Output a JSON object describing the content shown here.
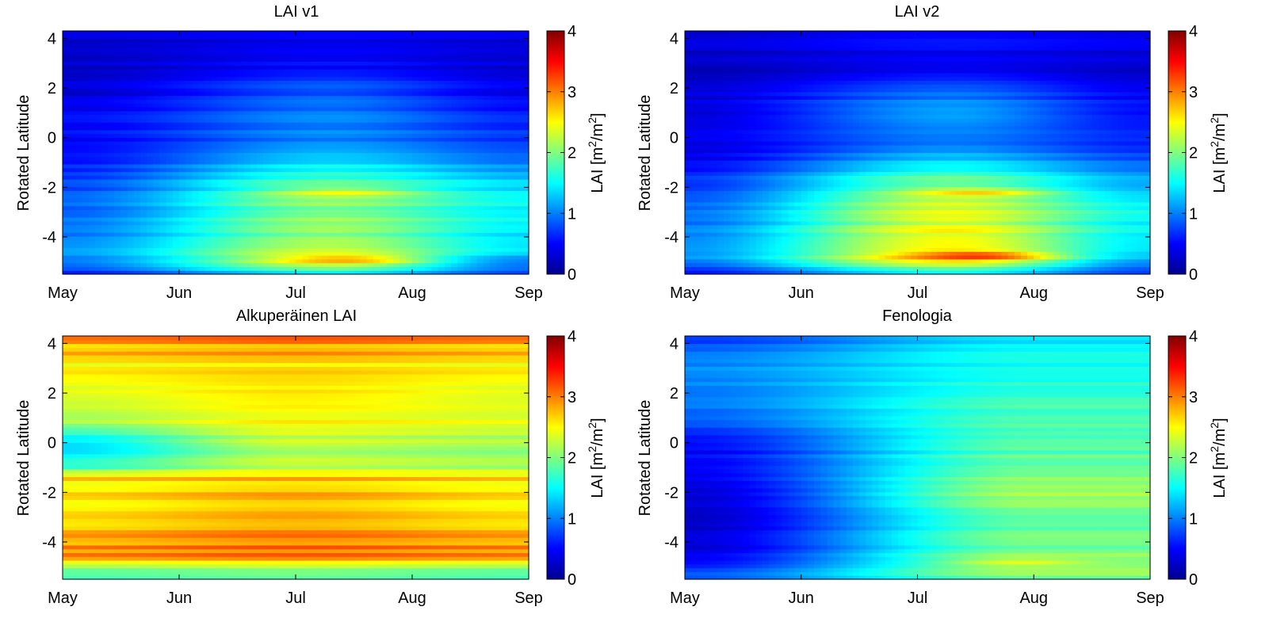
{
  "figure": {
    "colormap": "jet",
    "months": [
      "May",
      "Jun",
      "Jul",
      "Aug",
      "Sep"
    ]
  },
  "chart_data": [
    {
      "type": "heatmap",
      "title": "LAI v1",
      "xlabel": "",
      "ylabel": "Rotated Latitude",
      "xticks": [
        "May",
        "Jun",
        "Jul",
        "Aug",
        "Sep"
      ],
      "yticks": [
        4,
        2,
        0,
        -2,
        -4
      ],
      "ylim": [
        -5.5,
        4.3
      ],
      "colorbar": {
        "label_main": "LAI [m",
        "label_mid": "/m",
        "label_sup": "2",
        "clim": [
          0,
          4
        ],
        "ticks": [
          0,
          1,
          2,
          3,
          4
        ]
      },
      "pattern": {
        "lat_profile": [
          {
            "lat": -5.5,
            "early": 0.6,
            "peak": 1.4,
            "late": 0.8
          },
          {
            "lat": -5.0,
            "early": 1.0,
            "peak": 2.4,
            "late": 1.0
          },
          {
            "lat": -4.5,
            "early": 1.1,
            "peak": 2.2,
            "late": 1.4
          },
          {
            "lat": -3.0,
            "early": 0.9,
            "peak": 2.0,
            "late": 1.5
          },
          {
            "lat": -2.0,
            "early": 0.8,
            "peak": 1.9,
            "late": 1.4
          },
          {
            "lat": -1.0,
            "early": 0.6,
            "peak": 1.4,
            "late": 1.0
          },
          {
            "lat": 0.0,
            "early": 0.5,
            "peak": 1.0,
            "late": 0.7
          },
          {
            "lat": 1.0,
            "early": 0.5,
            "peak": 1.0,
            "late": 0.6
          },
          {
            "lat": 2.0,
            "early": 0.3,
            "peak": 0.8,
            "late": 0.4
          },
          {
            "lat": 3.0,
            "early": 0.3,
            "peak": 0.5,
            "late": 0.35
          },
          {
            "lat": 4.3,
            "early": 0.3,
            "peak": 0.4,
            "late": 0.35
          }
        ],
        "peak_month": 2.3,
        "hot_spots": [
          {
            "lat": -4.9,
            "month": 2.4,
            "value": 2.9
          },
          {
            "lat": -2.2,
            "month": 2.4,
            "value": 2.5
          }
        ],
        "stripe_amp": 0.18
      }
    },
    {
      "type": "heatmap",
      "title": "LAI v2",
      "xlabel": "",
      "ylabel": "Rotated Latitude",
      "xticks": [
        "May",
        "Jun",
        "Jul",
        "Aug",
        "Sep"
      ],
      "yticks": [
        4,
        2,
        0,
        -2,
        -4
      ],
      "ylim": [
        -5.5,
        4.3
      ],
      "colorbar": {
        "label_main": "LAI [m",
        "label_mid": "/m",
        "label_sup": "2",
        "clim": [
          0,
          4
        ],
        "ticks": [
          0,
          1,
          2,
          3,
          4
        ]
      },
      "pattern": {
        "lat_profile": [
          {
            "lat": -5.5,
            "early": 0.6,
            "peak": 1.5,
            "late": 0.8
          },
          {
            "lat": -5.0,
            "early": 1.0,
            "peak": 2.6,
            "late": 1.1
          },
          {
            "lat": -4.5,
            "early": 1.1,
            "peak": 2.5,
            "late": 1.4
          },
          {
            "lat": -3.0,
            "early": 0.9,
            "peak": 2.3,
            "late": 1.5
          },
          {
            "lat": -2.0,
            "early": 0.8,
            "peak": 2.1,
            "late": 1.3
          },
          {
            "lat": -1.0,
            "early": 0.5,
            "peak": 1.4,
            "late": 0.9
          },
          {
            "lat": 0.0,
            "early": 0.4,
            "peak": 0.9,
            "late": 0.6
          },
          {
            "lat": 1.0,
            "early": 0.4,
            "peak": 1.2,
            "late": 0.6
          },
          {
            "lat": 2.0,
            "early": 0.3,
            "peak": 0.8,
            "late": 0.4
          },
          {
            "lat": 3.0,
            "early": 0.25,
            "peak": 0.4,
            "late": 0.3
          },
          {
            "lat": 4.3,
            "early": 0.35,
            "peak": 0.55,
            "late": 0.45
          }
        ],
        "peak_month": 2.3,
        "hot_spots": [
          {
            "lat": -4.75,
            "month": 2.5,
            "value": 3.4
          },
          {
            "lat": -2.2,
            "month": 2.5,
            "value": 2.7
          }
        ],
        "stripe_amp": 0.18
      }
    },
    {
      "type": "heatmap",
      "title": "Alkuperäinen LAI",
      "xlabel": "",
      "ylabel": "Rotated Latitude",
      "xticks": [
        "May",
        "Jun",
        "Jul",
        "Aug",
        "Sep"
      ],
      "yticks": [
        4,
        2,
        0,
        -2,
        -4
      ],
      "ylim": [
        -5.5,
        4.3
      ],
      "colorbar": {
        "label_main": "LAI [m",
        "label_mid": "/m",
        "label_sup": "2",
        "clim": [
          0,
          4
        ],
        "ticks": [
          0,
          1,
          2,
          3,
          4
        ]
      },
      "pattern": {
        "lat_profile": [
          {
            "lat": -5.5,
            "early": 1.8,
            "peak": 1.9,
            "late": 1.8
          },
          {
            "lat": -5.0,
            "early": 2.0,
            "peak": 2.1,
            "late": 2.0
          },
          {
            "lat": -4.5,
            "early": 3.0,
            "peak": 3.1,
            "late": 3.0
          },
          {
            "lat": -3.0,
            "early": 2.7,
            "peak": 2.9,
            "late": 2.7
          },
          {
            "lat": -2.0,
            "early": 2.6,
            "peak": 2.8,
            "late": 2.6
          },
          {
            "lat": -1.3,
            "early": 2.6,
            "peak": 2.7,
            "late": 2.6
          },
          {
            "lat": -1.0,
            "early": 1.7,
            "peak": 2.2,
            "late": 2.1
          },
          {
            "lat": 0.0,
            "early": 1.3,
            "peak": 2.2,
            "late": 2.1
          },
          {
            "lat": 1.0,
            "early": 2.3,
            "peak": 2.6,
            "late": 2.5
          },
          {
            "lat": 2.0,
            "early": 2.4,
            "peak": 2.6,
            "late": 2.4
          },
          {
            "lat": 3.0,
            "early": 2.5,
            "peak": 2.6,
            "late": 2.5
          },
          {
            "lat": 4.3,
            "early": 2.9,
            "peak": 3.0,
            "late": 2.9
          }
        ],
        "peak_month": 2.0,
        "hot_spots": [],
        "stripe_amp": 0.15
      }
    },
    {
      "type": "heatmap",
      "title": "Fenologia",
      "xlabel": "",
      "ylabel": "Rotated Latitude",
      "xticks": [
        "May",
        "Jun",
        "Jul",
        "Aug",
        "Sep"
      ],
      "yticks": [
        4,
        2,
        0,
        -2,
        -4
      ],
      "ylim": [
        -5.5,
        4.3
      ],
      "colorbar": {
        "label_main": "LAI [m",
        "label_mid": "/m",
        "label_sup": "2",
        "clim": [
          0,
          4
        ],
        "ticks": [
          0,
          1,
          2,
          3,
          4
        ]
      },
      "pattern": {
        "lat_profile": [
          {
            "lat": -5.5,
            "early": 0.9,
            "peak": 1.9,
            "late": 1.9
          },
          {
            "lat": -5.0,
            "early": 0.7,
            "peak": 2.2,
            "late": 2.2
          },
          {
            "lat": -4.5,
            "early": 0.4,
            "peak": 2.0,
            "late": 2.0
          },
          {
            "lat": -3.0,
            "early": 0.3,
            "peak": 1.9,
            "late": 1.9
          },
          {
            "lat": -2.0,
            "early": 0.3,
            "peak": 2.1,
            "late": 2.1
          },
          {
            "lat": -1.0,
            "early": 0.5,
            "peak": 1.9,
            "late": 1.9
          },
          {
            "lat": 0.0,
            "early": 0.5,
            "peak": 1.8,
            "late": 1.8
          },
          {
            "lat": 1.0,
            "early": 0.9,
            "peak": 1.8,
            "late": 1.8
          },
          {
            "lat": 2.0,
            "early": 1.0,
            "peak": 1.7,
            "late": 1.7
          },
          {
            "lat": 3.0,
            "early": 1.1,
            "peak": 1.6,
            "late": 1.6
          },
          {
            "lat": 4.3,
            "early": 0.7,
            "peak": 1.4,
            "late": 1.4
          }
        ],
        "peak_month": 3.0,
        "hot_spots": [
          {
            "lat": -4.8,
            "month": 2.9,
            "value": 2.4
          }
        ],
        "stripe_amp": 0.14
      }
    }
  ]
}
